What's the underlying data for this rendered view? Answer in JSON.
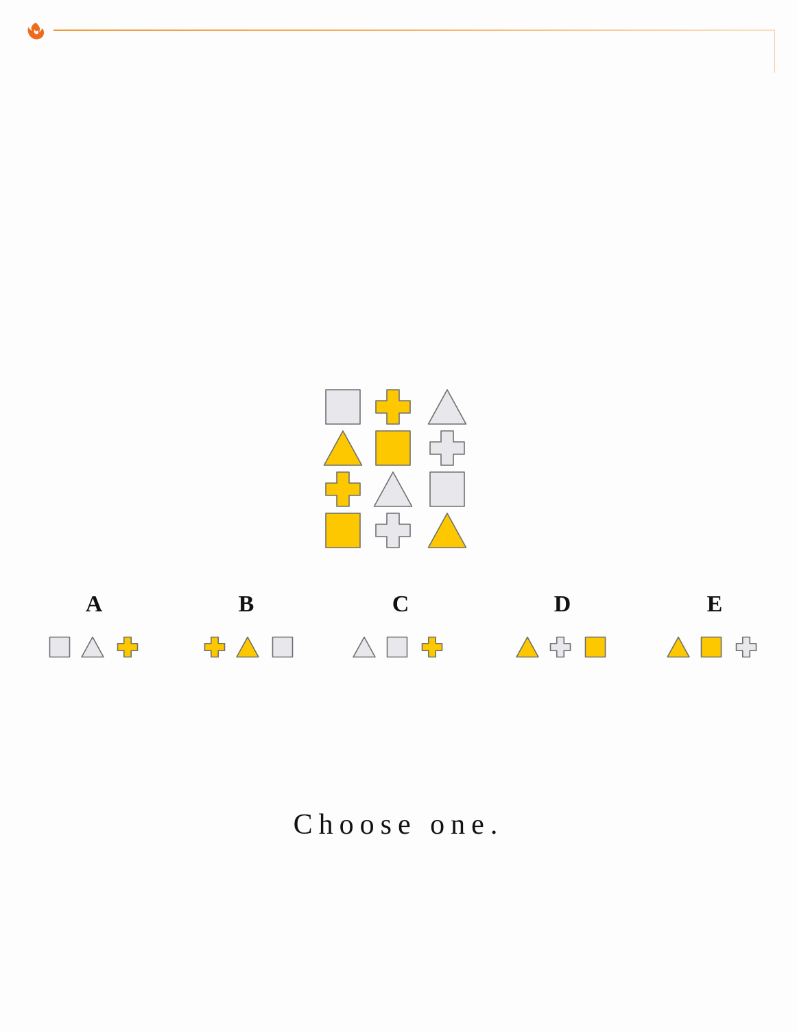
{
  "header": {
    "logo": "flame-logo-icon"
  },
  "puzzle": {
    "grid": [
      [
        "grey-square",
        "yellow-cross",
        "grey-triangle"
      ],
      [
        "yellow-triangle",
        "yellow-square",
        "grey-cross"
      ],
      [
        "yellow-cross",
        "grey-triangle",
        "grey-square"
      ],
      [
        "yellow-square",
        "grey-cross",
        "yellow-triangle"
      ]
    ],
    "options": [
      {
        "label": "A",
        "shapes": [
          "grey-square",
          "grey-triangle",
          "yellow-cross"
        ]
      },
      {
        "label": "B",
        "shapes": [
          "yellow-cross",
          "yellow-triangle",
          "grey-square"
        ]
      },
      {
        "label": "C",
        "shapes": [
          "grey-triangle",
          "grey-square",
          "yellow-cross"
        ]
      },
      {
        "label": "D",
        "shapes": [
          "yellow-triangle",
          "grey-cross",
          "yellow-square"
        ]
      },
      {
        "label": "E",
        "shapes": [
          "yellow-triangle",
          "yellow-square",
          "grey-cross"
        ]
      }
    ],
    "prompt": "Choose one."
  },
  "colors": {
    "yellow": "#fdc800",
    "grey": "#e8e8ec",
    "stroke": "#6f6f6f",
    "accent": "#ee6a1c"
  }
}
